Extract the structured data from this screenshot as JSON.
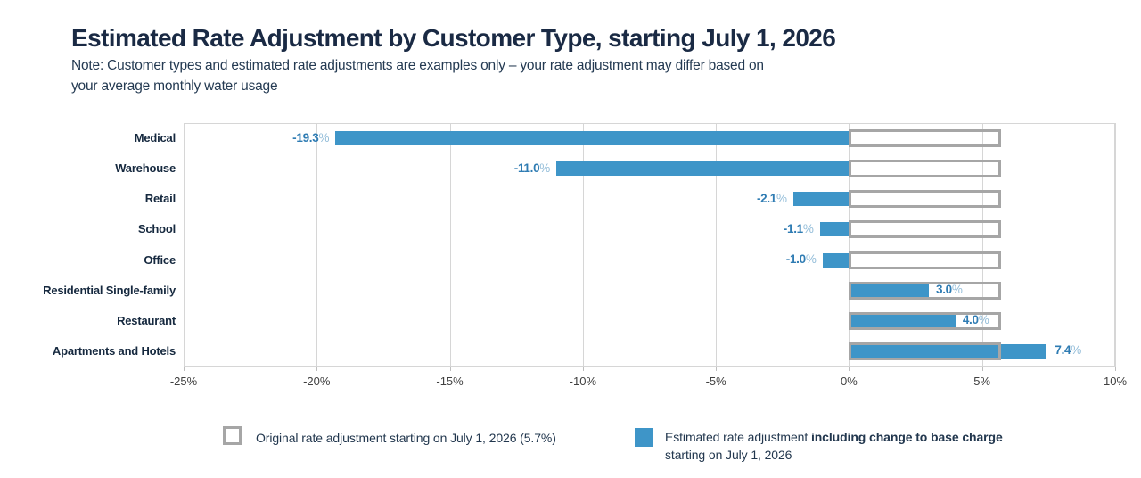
{
  "header": {
    "title": "Estimated Rate Adjustment by Customer Type, starting July 1, 2026",
    "note_line1": "Note: Customer types and estimated rate adjustments are examples only – your rate adjustment may differ based on",
    "note_line2": "your average monthly water usage"
  },
  "chart_data": {
    "type": "bar",
    "orientation": "horizontal",
    "categories": [
      "Medical",
      "Warehouse",
      "Retail",
      "School",
      "Office",
      "Residential Single-family",
      "Restaurant",
      "Apartments and Hotels"
    ],
    "series": [
      {
        "name": "Estimated rate adjustment including change to base charge starting on July 1, 2026",
        "values": [
          -19.3,
          -11.0,
          -2.1,
          -1.1,
          -1.0,
          3.0,
          4.0,
          7.4
        ]
      },
      {
        "name": "Original rate adjustment starting on July 1, 2026",
        "values": [
          5.7,
          5.7,
          5.7,
          5.7,
          5.7,
          5.7,
          5.7,
          5.7
        ]
      }
    ],
    "value_labels": [
      "-19.3%",
      "-11.0%",
      "-2.1%",
      "-1.1%",
      "-1.0%",
      "3.0%",
      "4.0%",
      "7.4%"
    ],
    "xlim": [
      -25,
      10
    ],
    "x_ticks": [
      -25,
      -20,
      -15,
      -10,
      -5,
      0,
      5,
      10
    ],
    "x_tick_labels": [
      "-25%",
      "-20%",
      "-15%",
      "-10%",
      "-5%",
      "0%",
      "5%",
      "10%"
    ],
    "grid": true,
    "legend_position": "bottom"
  },
  "legend": {
    "original_label": "Original rate adjustment starting on July 1, 2026 (5.7%)",
    "estimated_prefix": "Estimated rate adjustment ",
    "estimated_bold": "including change to base charge",
    "estimated_line2": "starting on July 1, 2026"
  },
  "colors": {
    "bar_blue": "#3e95c8",
    "value_number_blue": "#2f7cb3",
    "value_percent_blue": "#93bdd9",
    "original_box_border": "#a6a6a6",
    "gridline_gray": "#d6d6d6",
    "title_navy": "#1a2a44",
    "note_navy": "#243a52",
    "category_navy": "#16293f",
    "tick_text": "#404040"
  }
}
